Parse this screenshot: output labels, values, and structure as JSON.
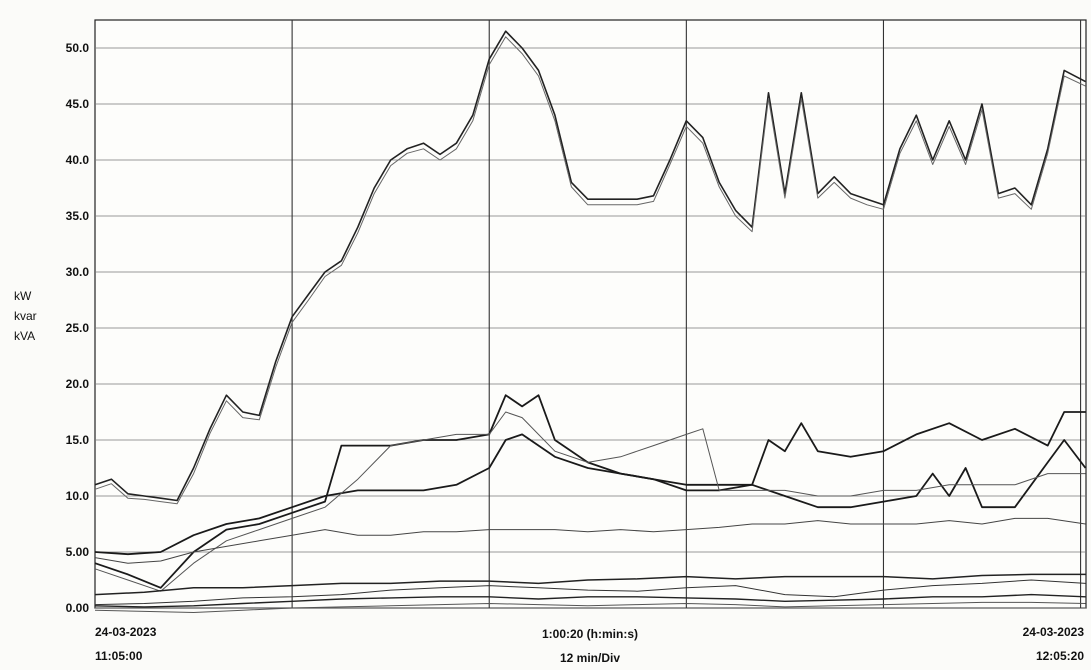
{
  "chart_data": {
    "type": "line",
    "ylabel_lines": [
      "kW",
      "kvar",
      "kVA"
    ],
    "yticks": [
      "0.00",
      "5.00",
      "10.0",
      "15.0",
      "20.0",
      "25.0",
      "30.0",
      "35.0",
      "40.0",
      "45.0",
      "50.0"
    ],
    "ylim": [
      0,
      52.5
    ],
    "xlim_minutes": [
      0,
      60.33
    ],
    "x_start": {
      "date": "24-03-2023",
      "time": "11:05:00"
    },
    "x_end": {
      "date": "24-03-2023",
      "time": "12:05:20"
    },
    "x_mid": {
      "label": "1:00:20 (h:min:s)",
      "sub": "12 min/Div"
    },
    "grid": true,
    "series": [
      {
        "color": "#222222",
        "width": 1.6,
        "x": [
          0,
          1,
          2,
          3,
          4,
          5,
          6,
          7,
          8,
          9,
          10,
          11,
          12,
          13,
          14,
          15,
          16,
          17,
          18,
          19,
          20,
          21,
          22,
          23,
          24,
          25,
          26,
          27,
          28,
          29,
          30,
          31,
          32,
          33,
          34,
          35,
          36,
          37,
          38,
          39,
          40,
          41,
          42,
          43,
          44,
          45,
          46,
          47,
          48,
          49,
          50,
          51,
          52,
          53,
          54,
          55,
          56,
          57,
          58,
          59,
          60.3
        ],
        "y": [
          11.0,
          11.5,
          10.2,
          10.0,
          9.8,
          9.6,
          12.5,
          16.0,
          19.0,
          17.5,
          17.2,
          22.0,
          26.0,
          28.0,
          30.0,
          31.0,
          34.0,
          37.5,
          40.0,
          41.0,
          41.5,
          40.5,
          41.5,
          44.0,
          49.0,
          51.5,
          50.0,
          48.0,
          44.0,
          38.0,
          36.5,
          36.5,
          36.5,
          36.5,
          36.8,
          40.0,
          43.5,
          42.0,
          38.0,
          35.5,
          34.0,
          46.0,
          37.0,
          46.0,
          37.0,
          38.5,
          37.0,
          36.5,
          36.0,
          41.0,
          44.0,
          40.0,
          43.5,
          40.0,
          45.0,
          37.0,
          37.5,
          36.0,
          41.0,
          48.0,
          47.0
        ]
      },
      {
        "color": "#666666",
        "width": 1.0,
        "x": [
          0,
          1,
          2,
          3,
          4,
          5,
          6,
          7,
          8,
          9,
          10,
          11,
          12,
          13,
          14,
          15,
          16,
          17,
          18,
          19,
          20,
          21,
          22,
          23,
          24,
          25,
          26,
          27,
          28,
          29,
          30,
          31,
          32,
          33,
          34,
          35,
          36,
          37,
          38,
          39,
          40,
          41,
          42,
          43,
          44,
          45,
          46,
          47,
          48,
          49,
          50,
          51,
          52,
          53,
          54,
          55,
          56,
          57,
          58,
          59,
          60.3
        ],
        "y": [
          10.6,
          11.1,
          9.8,
          9.7,
          9.5,
          9.3,
          12.0,
          15.6,
          18.5,
          17.0,
          16.8,
          21.5,
          25.5,
          27.5,
          29.6,
          30.6,
          33.5,
          37.0,
          39.5,
          40.6,
          41.0,
          40.0,
          41.0,
          43.5,
          48.5,
          51.0,
          49.5,
          47.5,
          43.5,
          37.6,
          36.0,
          36.0,
          36.0,
          36.0,
          36.3,
          39.6,
          43.0,
          41.5,
          37.6,
          35.0,
          33.6,
          45.5,
          36.6,
          45.5,
          36.6,
          38.0,
          36.6,
          36.0,
          35.6,
          40.6,
          43.5,
          39.6,
          43.0,
          39.6,
          44.5,
          36.6,
          37.0,
          35.6,
          40.6,
          47.5,
          46.6
        ]
      },
      {
        "color": "#1a1a1a",
        "width": 1.8,
        "x": [
          0,
          2,
          4,
          6,
          8,
          10,
          12,
          14,
          16,
          18,
          20,
          22,
          24,
          25,
          26,
          28,
          30,
          32,
          34,
          36,
          38,
          40,
          41,
          42,
          43,
          44,
          46,
          48,
          50,
          52,
          54,
          56,
          58,
          59,
          60.3
        ],
        "y": [
          5.0,
          4.8,
          5.0,
          6.5,
          7.5,
          8.0,
          9.0,
          10.0,
          10.5,
          10.5,
          10.5,
          11.0,
          12.5,
          15.0,
          15.5,
          13.5,
          12.5,
          12.0,
          11.5,
          11.0,
          11.0,
          11.0,
          15.0,
          14.0,
          16.5,
          14.0,
          13.5,
          14.0,
          15.5,
          16.5,
          15.0,
          16.0,
          14.5,
          17.5,
          17.5
        ]
      },
      {
        "color": "#1a1a1a",
        "width": 1.8,
        "x": [
          0,
          2,
          4,
          6,
          8,
          10,
          12,
          14,
          15,
          16,
          18,
          20,
          22,
          24,
          25,
          26,
          27,
          28,
          30,
          32,
          34,
          36,
          38,
          40,
          42,
          44,
          46,
          48,
          50,
          51,
          52,
          53,
          54,
          56,
          58,
          59,
          60.3
        ],
        "y": [
          4.0,
          3.0,
          1.8,
          5.0,
          7.0,
          7.5,
          8.5,
          9.5,
          14.5,
          14.5,
          14.5,
          15.0,
          15.0,
          15.5,
          19.0,
          18.0,
          19.0,
          15.0,
          13.0,
          12.0,
          11.5,
          10.5,
          10.5,
          11.0,
          10.0,
          9.0,
          9.0,
          9.5,
          10.0,
          12.0,
          10.0,
          12.5,
          9.0,
          9.0,
          13.0,
          15.0,
          12.5
        ]
      },
      {
        "color": "#555555",
        "width": 1.0,
        "x": [
          0,
          2,
          4,
          6,
          8,
          10,
          12,
          14,
          16,
          18,
          20,
          22,
          24,
          25,
          26,
          28,
          30,
          32,
          34,
          36,
          37,
          38,
          40,
          42,
          44,
          46,
          48,
          50,
          52,
          54,
          56,
          58,
          60.3
        ],
        "y": [
          3.5,
          2.5,
          1.5,
          4.0,
          6.0,
          7.0,
          8.0,
          9.0,
          11.5,
          14.5,
          15.0,
          15.5,
          15.5,
          17.5,
          17.0,
          14.0,
          13.0,
          13.5,
          14.5,
          15.5,
          16.0,
          10.5,
          10.5,
          10.5,
          10.0,
          10.0,
          10.5,
          10.5,
          11.0,
          11.0,
          11.0,
          12.0,
          12.0
        ]
      },
      {
        "color": "#444444",
        "width": 1.0,
        "x": [
          0,
          2,
          4,
          6,
          8,
          10,
          12,
          14,
          16,
          18,
          20,
          22,
          24,
          26,
          28,
          30,
          32,
          34,
          36,
          38,
          40,
          42,
          44,
          46,
          48,
          50,
          52,
          54,
          56,
          58,
          60.3
        ],
        "y": [
          4.5,
          4.0,
          4.2,
          5.0,
          5.5,
          6.0,
          6.5,
          7.0,
          6.5,
          6.5,
          6.8,
          6.8,
          7.0,
          7.0,
          7.0,
          6.8,
          7.0,
          6.8,
          7.0,
          7.2,
          7.5,
          7.5,
          7.8,
          7.5,
          7.5,
          7.5,
          7.8,
          7.5,
          8.0,
          8.0,
          7.5
        ]
      },
      {
        "color": "#222222",
        "width": 1.5,
        "x": [
          0,
          3,
          6,
          9,
          12,
          15,
          18,
          21,
          24,
          27,
          30,
          33,
          36,
          39,
          42,
          45,
          48,
          51,
          54,
          57,
          60.3
        ],
        "y": [
          1.2,
          1.4,
          1.8,
          1.8,
          2.0,
          2.2,
          2.2,
          2.4,
          2.4,
          2.2,
          2.5,
          2.6,
          2.8,
          2.6,
          2.8,
          2.8,
          2.8,
          2.6,
          2.9,
          3.0,
          3.0
        ]
      },
      {
        "color": "#333333",
        "width": 1.0,
        "x": [
          0,
          3,
          6,
          9,
          12,
          15,
          18,
          21,
          24,
          27,
          30,
          33,
          36,
          39,
          42,
          45,
          48,
          51,
          54,
          57,
          60.3
        ],
        "y": [
          0.3,
          0.4,
          0.6,
          0.9,
          1.0,
          1.2,
          1.6,
          1.8,
          2.0,
          1.8,
          1.6,
          1.5,
          1.8,
          2.0,
          1.2,
          1.0,
          1.6,
          2.0,
          2.2,
          2.5,
          2.2
        ]
      },
      {
        "color": "#222222",
        "width": 1.4,
        "x": [
          0,
          3,
          6,
          9,
          12,
          15,
          18,
          21,
          24,
          27,
          30,
          33,
          36,
          39,
          42,
          45,
          48,
          51,
          54,
          57,
          60.3
        ],
        "y": [
          0.2,
          0.1,
          0.2,
          0.4,
          0.6,
          0.8,
          0.9,
          1.0,
          1.0,
          0.8,
          1.0,
          1.0,
          0.9,
          0.8,
          0.6,
          0.7,
          0.8,
          1.0,
          1.0,
          1.2,
          1.0
        ]
      },
      {
        "color": "#555555",
        "width": 1.0,
        "x": [
          0,
          3,
          6,
          9,
          12,
          15,
          18,
          21,
          24,
          27,
          30,
          33,
          36,
          39,
          42,
          45,
          48,
          51,
          54,
          57,
          60.3
        ],
        "y": [
          -0.2,
          -0.3,
          -0.4,
          -0.2,
          0.0,
          0.1,
          0.2,
          0.3,
          0.4,
          0.3,
          0.2,
          0.3,
          0.4,
          0.3,
          0.1,
          0.2,
          0.3,
          0.4,
          0.5,
          0.5,
          0.4
        ]
      }
    ]
  }
}
